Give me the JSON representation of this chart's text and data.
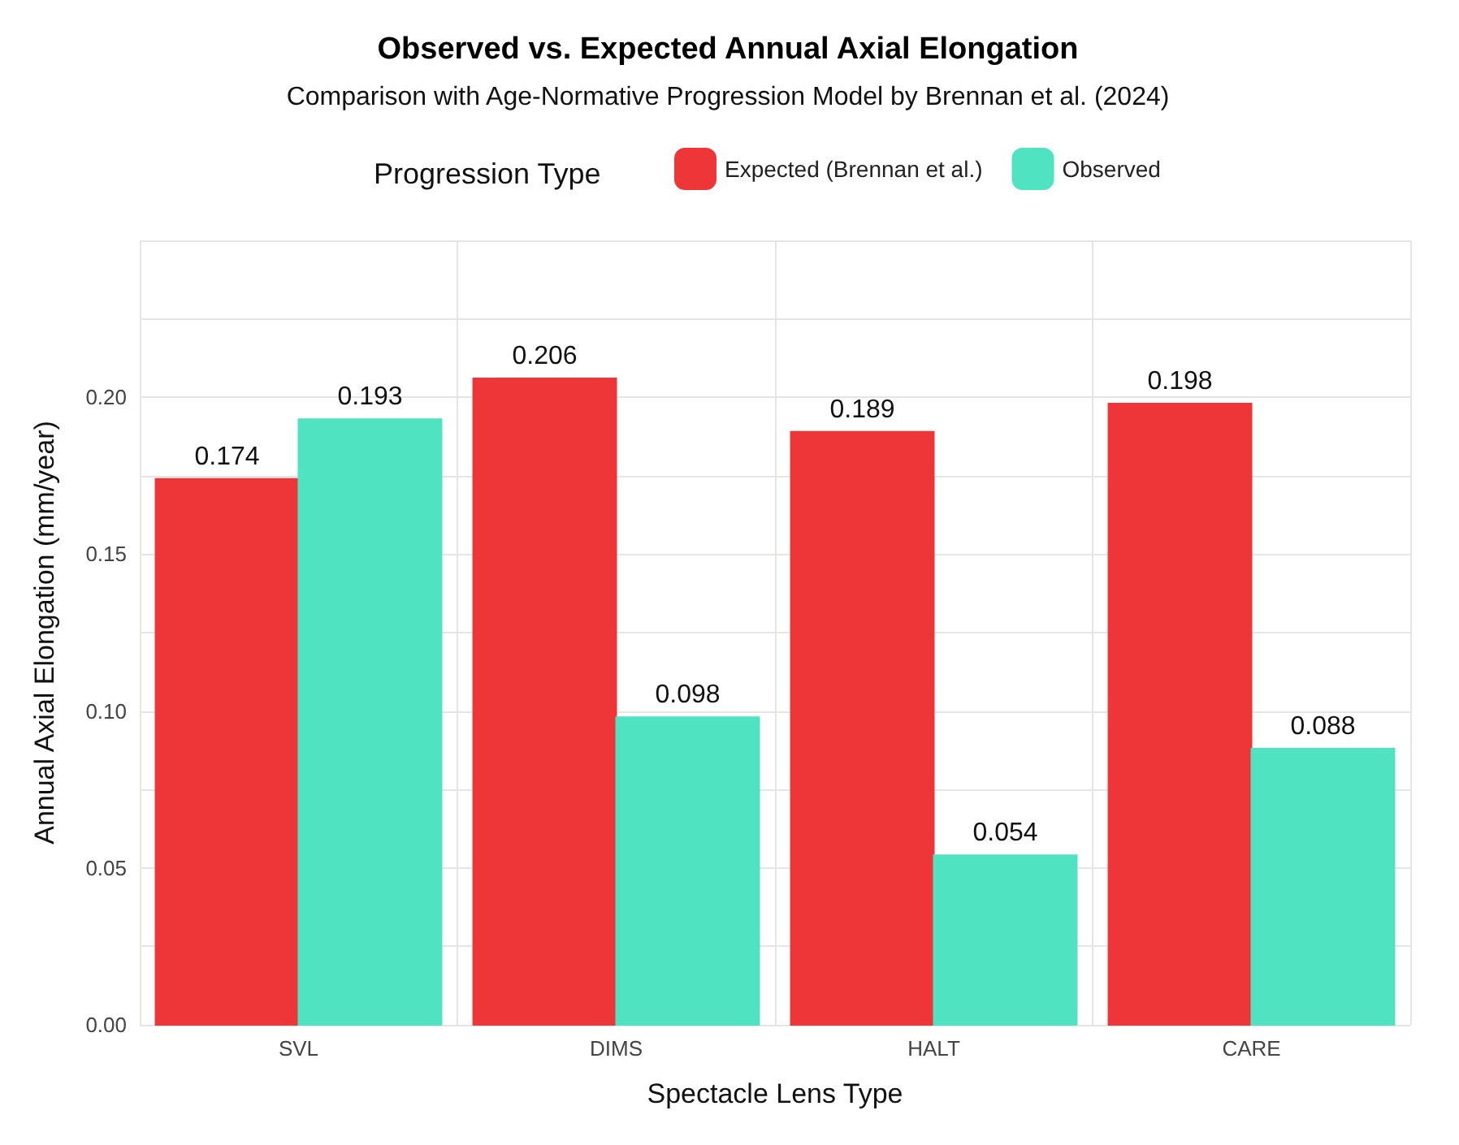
{
  "chart_data": {
    "type": "bar",
    "title": "Observed vs. Expected Annual Axial Elongation",
    "subtitle": "Comparison with Age-Normative Progression Model by Brennan et al. (2024)",
    "xlabel": "Spectacle Lens Type",
    "ylabel": "Annual Axial Elongation (mm/year)",
    "legend_title": "Progression Type",
    "categories": [
      "SVL",
      "DIMS",
      "HALT",
      "CARE"
    ],
    "series": [
      {
        "name": "Expected (Brennan et al.)",
        "color": "#ee3537",
        "values": [
          0.174,
          0.206,
          0.189,
          0.198
        ]
      },
      {
        "name": "Observed",
        "color": "#50e3c2",
        "values": [
          0.193,
          0.098,
          0.054,
          0.088
        ]
      }
    ],
    "ylim": [
      0,
      0.25
    ],
    "yticks": [
      "0.00",
      {
        "value": 0.025,
        "label": null
      },
      {
        "value": 0.05,
        "label": "0.05"
      },
      {
        "value": 0.075,
        "label": null
      },
      {
        "value": 0.1,
        "label": "0.10"
      },
      {
        "value": 0.125,
        "label": null
      },
      {
        "value": 0.15,
        "label": "0.15"
      },
      {
        "value": 0.175,
        "label": null
      },
      {
        "value": 0.2,
        "label": "0.20"
      },
      {
        "value": 0.225,
        "label": null
      },
      {
        "value": 0.25,
        "label": null
      }
    ],
    "data_labels": true,
    "grid": true,
    "legend": "top"
  }
}
